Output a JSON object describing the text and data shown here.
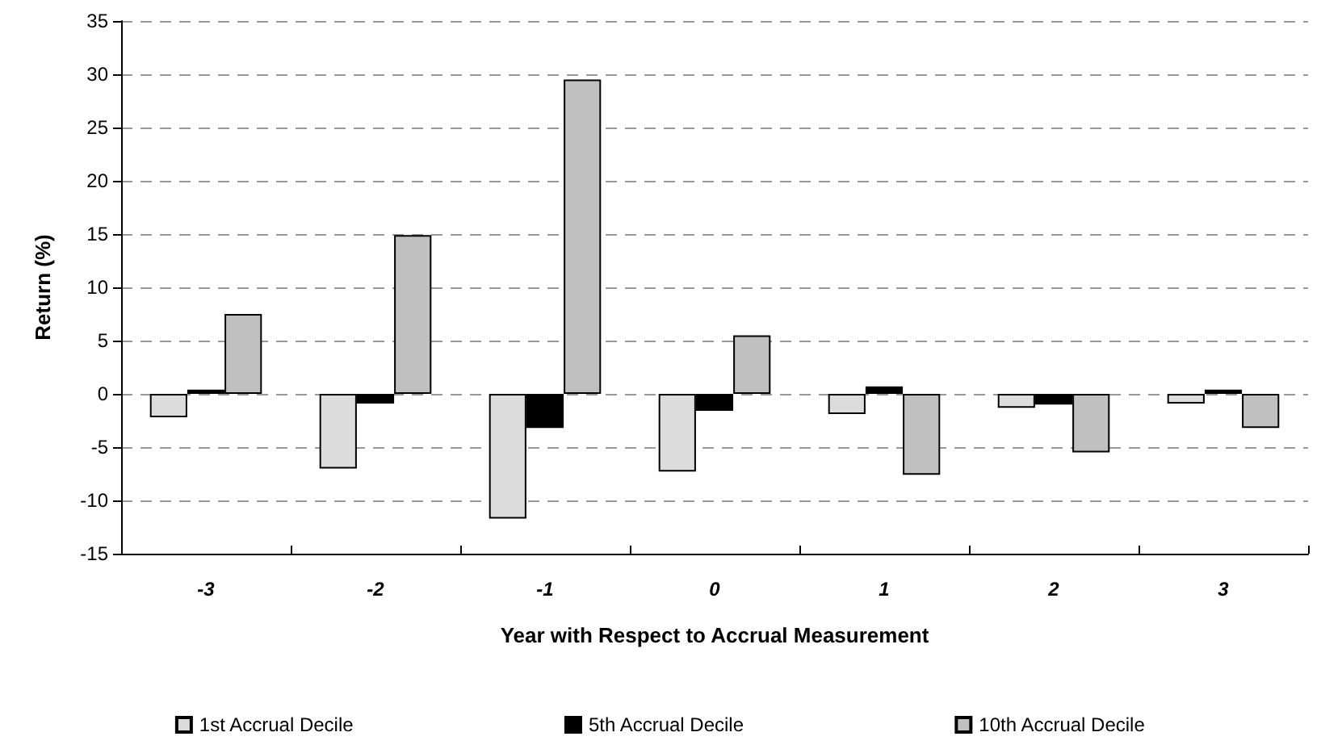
{
  "chart_data": {
    "type": "bar",
    "xlabel": "Year with Respect to Accrual Measurement",
    "ylabel": "Return (%)",
    "categories": [
      "-3",
      "-2",
      "-1",
      "0",
      "1",
      "2",
      "3"
    ],
    "series": [
      {
        "name": "1st Accrual Decile",
        "color": "#dcdcdc",
        "values": [
          -2.2,
          -7.0,
          -11.7,
          -7.3,
          -1.9,
          -1.3,
          -0.9
        ]
      },
      {
        "name": "5th Accrual Decile",
        "color": "#000000",
        "values": [
          0.4,
          -0.9,
          -3.2,
          -1.6,
          0.7,
          -1.0,
          0.4
        ]
      },
      {
        "name": "10th Accrual Decile",
        "color": "#c0c0c0",
        "values": [
          7.5,
          14.9,
          29.5,
          5.5,
          -7.6,
          -5.5,
          -3.2
        ]
      }
    ],
    "ylim": [
      -15,
      35
    ],
    "yticks": [
      -15,
      -10,
      -5,
      0,
      5,
      10,
      15,
      20,
      25,
      30,
      35
    ],
    "grid": "y",
    "legend": "bottom"
  }
}
